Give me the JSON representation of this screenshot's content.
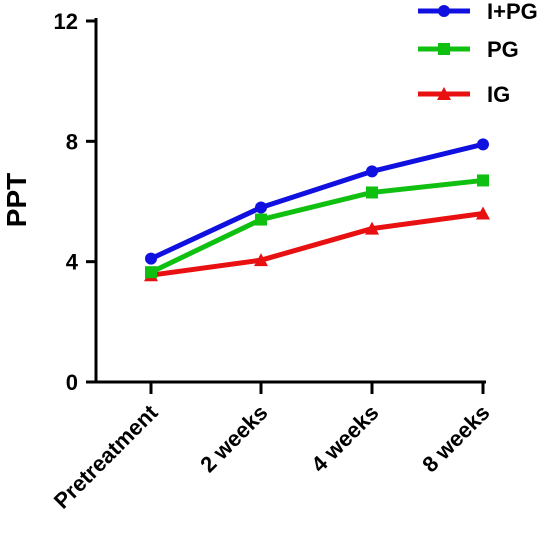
{
  "chart_data": {
    "type": "line",
    "title": "",
    "xlabel": "",
    "ylabel": "PPT",
    "categories": [
      "Pretreatment",
      "2 weeks",
      "4 weeks",
      "8 weeks"
    ],
    "ylim": [
      0,
      12
    ],
    "yticks": [
      "0",
      "4",
      "8",
      "12"
    ],
    "grid": false,
    "legend": "top-right",
    "series": [
      {
        "name": "I+PG",
        "color": "#1010e0",
        "marker": "circle",
        "values": [
          4.1,
          5.8,
          7.0,
          7.9
        ]
      },
      {
        "name": "PG",
        "color": "#10c010",
        "marker": "square",
        "values": [
          3.65,
          5.4,
          6.3,
          6.7
        ]
      },
      {
        "name": "IG",
        "color": "#e81010",
        "marker": "triangle",
        "values": [
          3.55,
          4.05,
          5.1,
          5.6
        ]
      }
    ]
  }
}
